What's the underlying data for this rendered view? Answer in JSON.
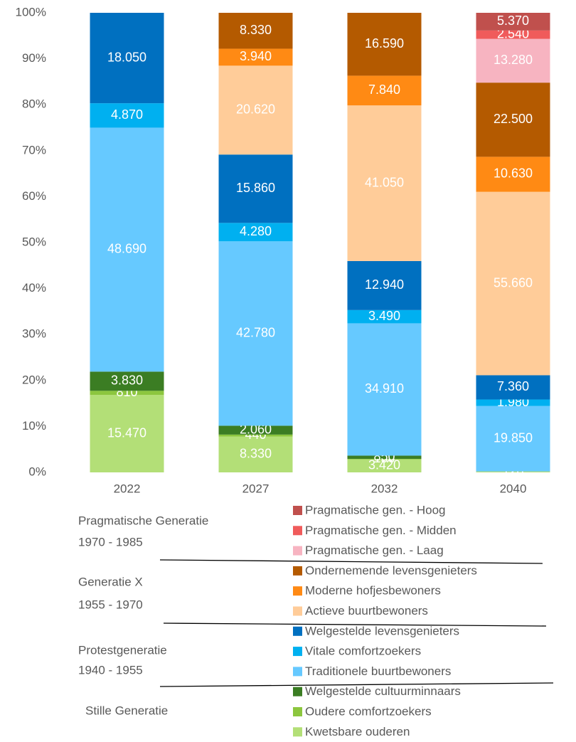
{
  "chart_data": {
    "type": "bar",
    "stacking": "percent",
    "categories": [
      "2022",
      "2027",
      "2032",
      "2040"
    ],
    "ylim": [
      0,
      100
    ],
    "yticks": [
      {
        "value": 0,
        "label": "0%"
      },
      {
        "value": 10,
        "label": "10%"
      },
      {
        "value": 20,
        "label": "20%"
      },
      {
        "value": 30,
        "label": "30%"
      },
      {
        "value": 40,
        "label": "40%"
      },
      {
        "value": 50,
        "label": "50%"
      },
      {
        "value": 60,
        "label": "60%"
      },
      {
        "value": 70,
        "label": "70%"
      },
      {
        "value": 80,
        "label": "80%"
      },
      {
        "value": 90,
        "label": "90%"
      },
      {
        "value": 100,
        "label": "100%"
      }
    ],
    "grid": false,
    "series": [
      {
        "name": "Kwetsbare ouderen",
        "color": "#b3df77",
        "values": [
          15470,
          8330,
          3420,
          170
        ],
        "value_labels": [
          "15.470",
          "8.330",
          "3.420",
          "170"
        ]
      },
      {
        "name": "Oudere comfortzoekers",
        "color": "#8cc63e",
        "values": [
          810,
          440,
          150,
          120
        ],
        "value_labels": [
          "810",
          "440",
          "150",
          "120"
        ]
      },
      {
        "name": "Welgestelde cultuurminnaars",
        "color": "#3b7d23",
        "values": [
          3830,
          2060,
          850,
          null
        ],
        "value_labels": [
          "3.830",
          "2.060",
          "850",
          null
        ]
      },
      {
        "name": "Traditionele buurtbewoners",
        "color": "#66c9ff",
        "values": [
          48690,
          42780,
          34910,
          19850
        ],
        "value_labels": [
          "48.690",
          "42.780",
          "34.910",
          "19.850"
        ]
      },
      {
        "name": "Vitale comfortzoekers",
        "color": "#00b0f0",
        "values": [
          4870,
          4280,
          3490,
          1980
        ],
        "value_labels": [
          "4.870",
          "4.280",
          "3.490",
          "1.980"
        ]
      },
      {
        "name": "Welgestelde levensgenieters",
        "color": "#0070c0",
        "values": [
          18050,
          15860,
          12940,
          7360
        ],
        "value_labels": [
          "18.050",
          "15.860",
          "12.940",
          "7.360"
        ]
      },
      {
        "name": "Actieve buurtbewoners",
        "color": "#ffcc99",
        "values": [
          null,
          20620,
          41050,
          55660
        ],
        "value_labels": [
          null,
          "20.620",
          "41.050",
          "55.660"
        ]
      },
      {
        "name": "Moderne hofjesbewoners",
        "color": "#ff8a14",
        "values": [
          null,
          3940,
          7840,
          10630
        ],
        "value_labels": [
          null,
          "3.940",
          "7.840",
          "10.630"
        ]
      },
      {
        "name": "Ondernemende levensgenieters",
        "color": "#b45a00",
        "values": [
          null,
          8330,
          16590,
          22500
        ],
        "value_labels": [
          null,
          "8.330",
          "16.590",
          "22.500"
        ]
      },
      {
        "name": "Pragmatische gen. - Laag",
        "color": "#f7b4c1",
        "values": [
          null,
          null,
          null,
          13280
        ],
        "value_labels": [
          null,
          null,
          null,
          "13.280"
        ]
      },
      {
        "name": "Pragmatische gen. - Midden",
        "color": "#f05b5b",
        "values": [
          null,
          null,
          null,
          2540
        ],
        "value_labels": [
          null,
          null,
          null,
          "2.540"
        ]
      },
      {
        "name": "Pragmatische gen. - Hoog",
        "color": "#c0504d",
        "values": [
          null,
          null,
          null,
          5370
        ],
        "value_labels": [
          null,
          null,
          null,
          "5.370"
        ]
      }
    ],
    "legend_groups": [
      {
        "name": "Pragmatische Generatie",
        "years": "1970 - 1985"
      },
      {
        "name": "Generatie X",
        "years": "1955 - 1970"
      },
      {
        "name": "Protestgeneratie",
        "years": "1940 - 1955"
      },
      {
        "name": "Stille Generatie"
      }
    ]
  }
}
